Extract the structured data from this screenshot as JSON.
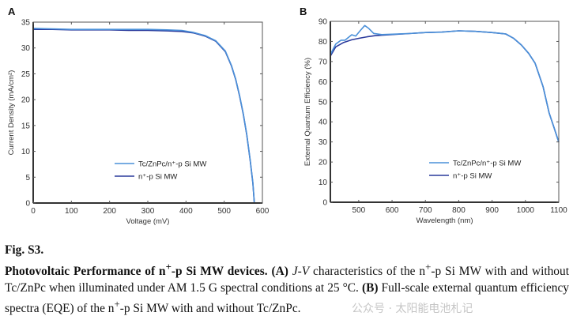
{
  "chart_data": [
    {
      "panel": "A",
      "type": "line",
      "title": "",
      "xlabel": "Voltage (mV)",
      "ylabel": "Current Density (mA/cm²)",
      "xlim": [
        0,
        600
      ],
      "ylim": [
        0,
        35
      ],
      "xticks": [
        0,
        100,
        200,
        300,
        400,
        500,
        600
      ],
      "yticks": [
        0,
        5,
        10,
        15,
        20,
        25,
        30,
        35
      ],
      "grid": false,
      "legend_position": "center-left-lower",
      "series": [
        {
          "name": "Tc/ZnPc/n⁺-p Si MW",
          "color": "#4a90d9",
          "x": [
            0,
            50,
            100,
            150,
            200,
            250,
            300,
            350,
            389,
            420,
            450,
            478,
            503,
            519,
            530,
            540,
            550,
            559,
            568,
            575,
            579
          ],
          "y": [
            33.8,
            33.7,
            33.6,
            33.6,
            33.6,
            33.6,
            33.6,
            33.5,
            33.4,
            33.0,
            32.4,
            31.4,
            29.4,
            26.6,
            24.0,
            20.9,
            17.3,
            13.3,
            8.4,
            4.0,
            0
          ]
        },
        {
          "name": "n⁺-p Si MW",
          "color": "#2a3a9c",
          "x": [
            0,
            50,
            100,
            150,
            200,
            250,
            300,
            350,
            389,
            420,
            450,
            478,
            503,
            519,
            530,
            540,
            550,
            559,
            568,
            575,
            579
          ],
          "y": [
            33.6,
            33.6,
            33.5,
            33.5,
            33.5,
            33.4,
            33.4,
            33.3,
            33.2,
            32.9,
            32.3,
            31.3,
            29.3,
            26.5,
            23.9,
            20.8,
            17.2,
            13.2,
            8.3,
            3.9,
            0
          ]
        }
      ]
    },
    {
      "panel": "B",
      "type": "line",
      "title": "",
      "xlabel": "Wavelength (nm)",
      "ylabel": "External Quantum Efficiency (%)",
      "xlim": [
        415,
        1100
      ],
      "ylim": [
        0,
        90
      ],
      "xticks": [
        500,
        600,
        700,
        800,
        900,
        1000,
        1100
      ],
      "yticks": [
        0,
        10,
        20,
        30,
        40,
        50,
        60,
        70,
        80,
        90
      ],
      "grid": false,
      "legend_position": "center-lower",
      "series": [
        {
          "name": "Tc/ZnPc/n⁺-p Si MW",
          "color": "#4a90d9",
          "x": [
            415,
            431,
            447,
            459,
            479,
            491,
            505,
            518,
            530,
            545,
            569,
            600,
            650,
            700,
            750,
            800,
            850,
            900,
            941,
            965,
            988,
            1010,
            1029,
            1053,
            1071,
            1085,
            1100
          ],
          "y": [
            73.5,
            78.7,
            80.6,
            80.6,
            83.3,
            82.7,
            85.5,
            87.9,
            86.5,
            84.0,
            83.4,
            83.6,
            83.9,
            84.4,
            84.6,
            85.3,
            85.0,
            84.4,
            83.7,
            81.5,
            78.2,
            74.0,
            69.2,
            57.4,
            44.4,
            37.5,
            29.9
          ]
        },
        {
          "name": "n⁺-p Si MW",
          "color": "#2a3a9c",
          "x": [
            415,
            431,
            455,
            479,
            502,
            525,
            550,
            597,
            650,
            700,
            750,
            800,
            850,
            900,
            941,
            965,
            988,
            1010,
            1029,
            1053,
            1071,
            1085,
            1100
          ],
          "y": [
            72.7,
            77.3,
            79.5,
            80.8,
            81.6,
            82.3,
            82.9,
            83.4,
            83.9,
            84.4,
            84.7,
            85.3,
            85.0,
            84.4,
            83.7,
            81.5,
            78.2,
            74.0,
            69.2,
            57.4,
            44.4,
            37.5,
            29.9
          ]
        }
      ]
    }
  ],
  "caption": {
    "fig_label": "Fig. S3.",
    "bold_lead": "Photovoltaic Performance of n",
    "bold_sup": "+",
    "bold_tail": "-p Si MW devices.",
    "a_label": "(A)",
    "jv_italic": "J-V",
    "text1a": " characteristics of the n",
    "sup1": "+",
    "text1b": "-p Si MW with and without Tc/ZnPc when illuminated under AM 1.5 G spectral conditions at 25 °C. ",
    "b_label": "(B)",
    "text2a": " Full-scale external quantum efficiency spectra (EQE) of the n",
    "sup2": "+",
    "text2b": "-p Si MW with and without Tc/ZnPc."
  },
  "watermark": "公众号 · 太阳能电池札记"
}
